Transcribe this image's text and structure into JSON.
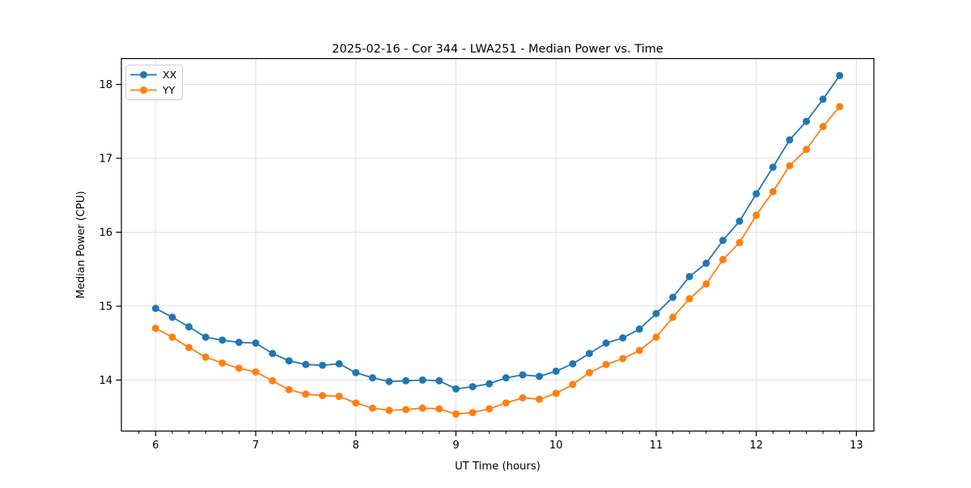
{
  "chart_data": {
    "type": "line",
    "title": "2025-02-16 - Cor 344 - LWA251 - Median Power vs. Time",
    "xlabel": "UT Time (hours)",
    "ylabel": "Median Power (CPU)",
    "xlim": [
      5.658,
      13.175
    ],
    "ylim": [
      13.31,
      18.35
    ],
    "xticks": [
      6,
      7,
      8,
      9,
      10,
      11,
      12,
      13
    ],
    "yticks": [
      14,
      15,
      16,
      17,
      18
    ],
    "minor_xticks_per_hour": 6,
    "grid": true,
    "legend_position": "upper-left",
    "x": [
      6.0,
      6.167,
      6.333,
      6.5,
      6.667,
      6.833,
      7.0,
      7.167,
      7.333,
      7.5,
      7.667,
      7.833,
      8.0,
      8.167,
      8.333,
      8.5,
      8.667,
      8.833,
      9.0,
      9.167,
      9.333,
      9.5,
      9.667,
      9.833,
      10.0,
      10.167,
      10.333,
      10.5,
      10.667,
      10.833,
      11.0,
      11.167,
      11.333,
      11.5,
      11.667,
      11.833,
      12.0,
      12.167,
      12.333,
      12.5,
      12.667,
      12.833
    ],
    "series": [
      {
        "name": "XX",
        "color": "#1f77b4",
        "marker": "circle",
        "values": [
          14.97,
          14.85,
          14.72,
          14.58,
          14.54,
          14.51,
          14.5,
          14.36,
          14.26,
          14.21,
          14.2,
          14.22,
          14.1,
          14.03,
          13.98,
          13.99,
          14.0,
          13.99,
          13.88,
          13.91,
          13.95,
          14.03,
          14.07,
          14.05,
          14.12,
          14.22,
          14.36,
          14.5,
          14.57,
          14.69,
          14.9,
          15.12,
          15.4,
          15.58,
          15.89,
          16.15,
          16.52,
          16.88,
          17.25,
          17.5,
          17.8,
          18.12
        ]
      },
      {
        "name": "YY",
        "color": "#ff7f0e",
        "marker": "circle",
        "values": [
          14.7,
          14.58,
          14.44,
          14.31,
          14.23,
          14.16,
          14.11,
          13.99,
          13.87,
          13.81,
          13.79,
          13.78,
          13.69,
          13.62,
          13.59,
          13.6,
          13.62,
          13.61,
          13.54,
          13.56,
          13.61,
          13.69,
          13.76,
          13.74,
          13.82,
          13.94,
          14.1,
          14.21,
          14.29,
          14.4,
          14.58,
          14.85,
          15.1,
          15.3,
          15.63,
          15.86,
          16.23,
          16.55,
          16.9,
          17.12,
          17.43,
          17.7
        ]
      }
    ]
  },
  "styles": {
    "background": "#ffffff",
    "grid_color": "#e0e0e0",
    "spine_color": "#000000",
    "text_color": "#000000",
    "legend_border_color": "#cccccc"
  }
}
